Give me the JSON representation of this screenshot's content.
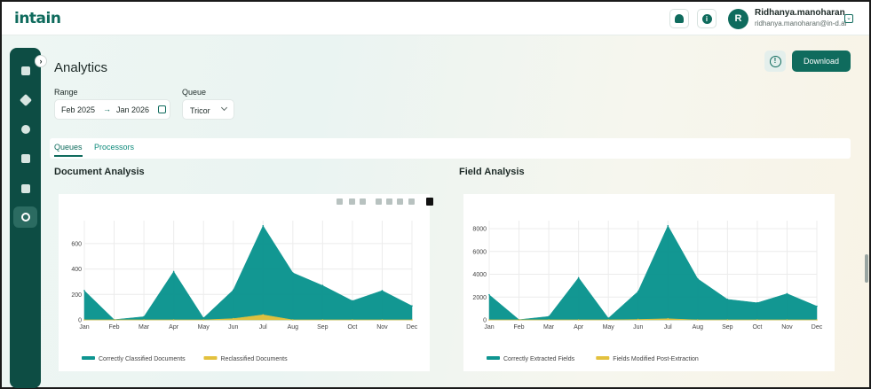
{
  "header": {
    "logo_text": "intain",
    "user": {
      "initial": "R",
      "name": "Ridhanya.manoharan",
      "email": "ridhanya.manoharan@in-d.ai"
    },
    "icons": [
      "bell-icon",
      "info-icon",
      "chevron-down-icon"
    ]
  },
  "sidebar": {
    "items": [
      {
        "name": "upload-icon"
      },
      {
        "name": "layers-icon"
      },
      {
        "name": "user-icon"
      },
      {
        "name": "document-icon"
      },
      {
        "name": "book-icon"
      },
      {
        "name": "analytics-icon",
        "active": true
      }
    ]
  },
  "page": {
    "title": "Analytics",
    "download_label": "Download"
  },
  "filters": {
    "range_label": "Range",
    "range_from": "Feb 2025",
    "range_arrow": "→",
    "range_to": "Jan 2026",
    "queue_label": "Queue",
    "queue_value": "Tricor"
  },
  "tabs": [
    {
      "label": "Queues",
      "active": true
    },
    {
      "label": "Processors",
      "active": false
    }
  ],
  "colors": {
    "primary": "#0f6b5d",
    "series_teal": "#0e9590",
    "series_yellow": "#e3c13e"
  },
  "chart_data": [
    {
      "type": "area",
      "title": "Document Analysis",
      "categories": [
        "Jan",
        "Feb",
        "Mar",
        "Apr",
        "May",
        "Jun",
        "Jul",
        "Aug",
        "Sep",
        "Oct",
        "Nov",
        "Dec"
      ],
      "ylim": [
        0,
        780
      ],
      "yticks": [
        0,
        200,
        400,
        600
      ],
      "grid": true,
      "legend": "bottom-left",
      "series": [
        {
          "name": "Correctly Classified Documents",
          "color": "#0e9590",
          "values": [
            230,
            2,
            25,
            380,
            15,
            235,
            740,
            370,
            270,
            150,
            230,
            110
          ]
        },
        {
          "name": "Reclassified Documents",
          "color": "#e3c13e",
          "values": [
            0,
            0,
            0,
            0,
            0,
            10,
            40,
            0,
            0,
            0,
            0,
            0
          ]
        }
      ]
    },
    {
      "type": "area",
      "title": "Field Analysis",
      "categories": [
        "Jan",
        "Feb",
        "Mar",
        "Apr",
        "May",
        "Jun",
        "Jul",
        "Aug",
        "Sep",
        "Oct",
        "Nov",
        "Dec"
      ],
      "ylim": [
        0,
        8700
      ],
      "yticks": [
        0,
        2000,
        4000,
        6000,
        8000
      ],
      "grid": true,
      "legend": "bottom-left",
      "series": [
        {
          "name": "Correctly Extracted Fields",
          "color": "#0e9590",
          "values": [
            2200,
            20,
            300,
            3700,
            150,
            2500,
            8250,
            3600,
            1800,
            1500,
            2300,
            1200
          ]
        },
        {
          "name": "Fields Modified Post-Extraction",
          "color": "#e3c13e",
          "values": [
            0,
            0,
            0,
            0,
            0,
            40,
            100,
            0,
            0,
            0,
            0,
            0
          ]
        }
      ]
    }
  ]
}
